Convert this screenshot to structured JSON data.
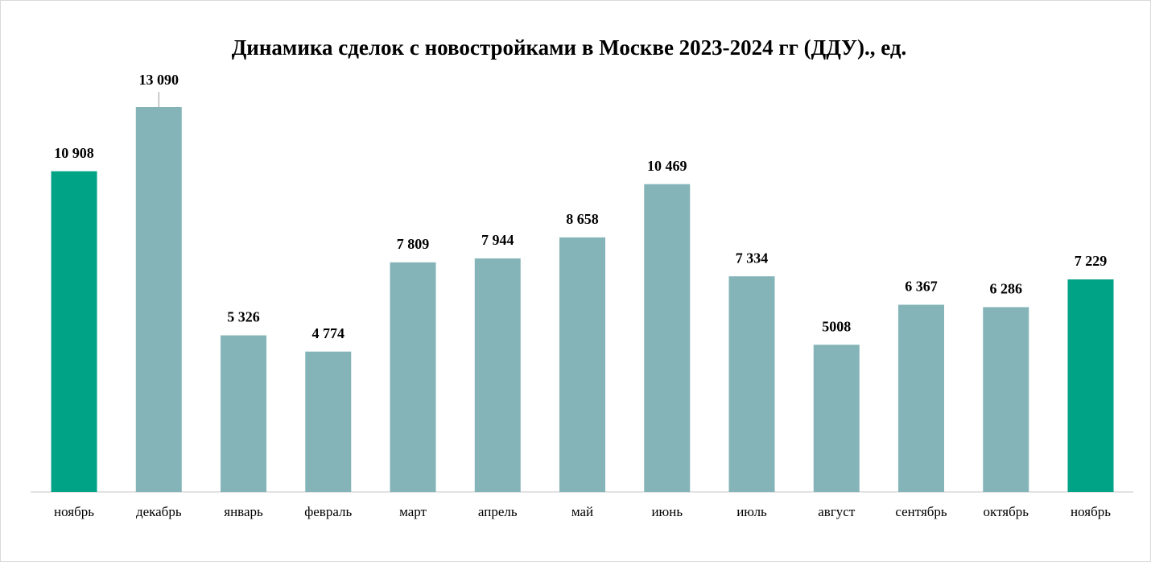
{
  "chart_data": {
    "type": "bar",
    "title": "Динамика сделок с новостройками в Москве 2023-2024 гг (ДДУ)., ед.",
    "categories": [
      "ноябрь",
      "декабрь",
      "январь",
      "февраль",
      "март",
      "апрель",
      "май",
      "июнь",
      "июль",
      "август",
      "сентябрь",
      "октябрь",
      "ноябрь"
    ],
    "values": [
      10908,
      13090,
      5326,
      4774,
      7809,
      7944,
      8658,
      10469,
      7334,
      5008,
      6367,
      6286,
      7229
    ],
    "value_labels": [
      "10 908",
      "13 090",
      "5 326",
      "4 774",
      "7 809",
      "7 944",
      "8 658",
      "10 469",
      "7 334",
      "5008",
      "6 367",
      "6 286",
      "7 229"
    ],
    "colors": [
      "#00a386",
      "#84b4b8",
      "#84b4b8",
      "#84b4b8",
      "#84b4b8",
      "#84b4b8",
      "#84b4b8",
      "#84b4b8",
      "#84b4b8",
      "#84b4b8",
      "#84b4b8",
      "#84b4b8",
      "#00a386"
    ]
  }
}
